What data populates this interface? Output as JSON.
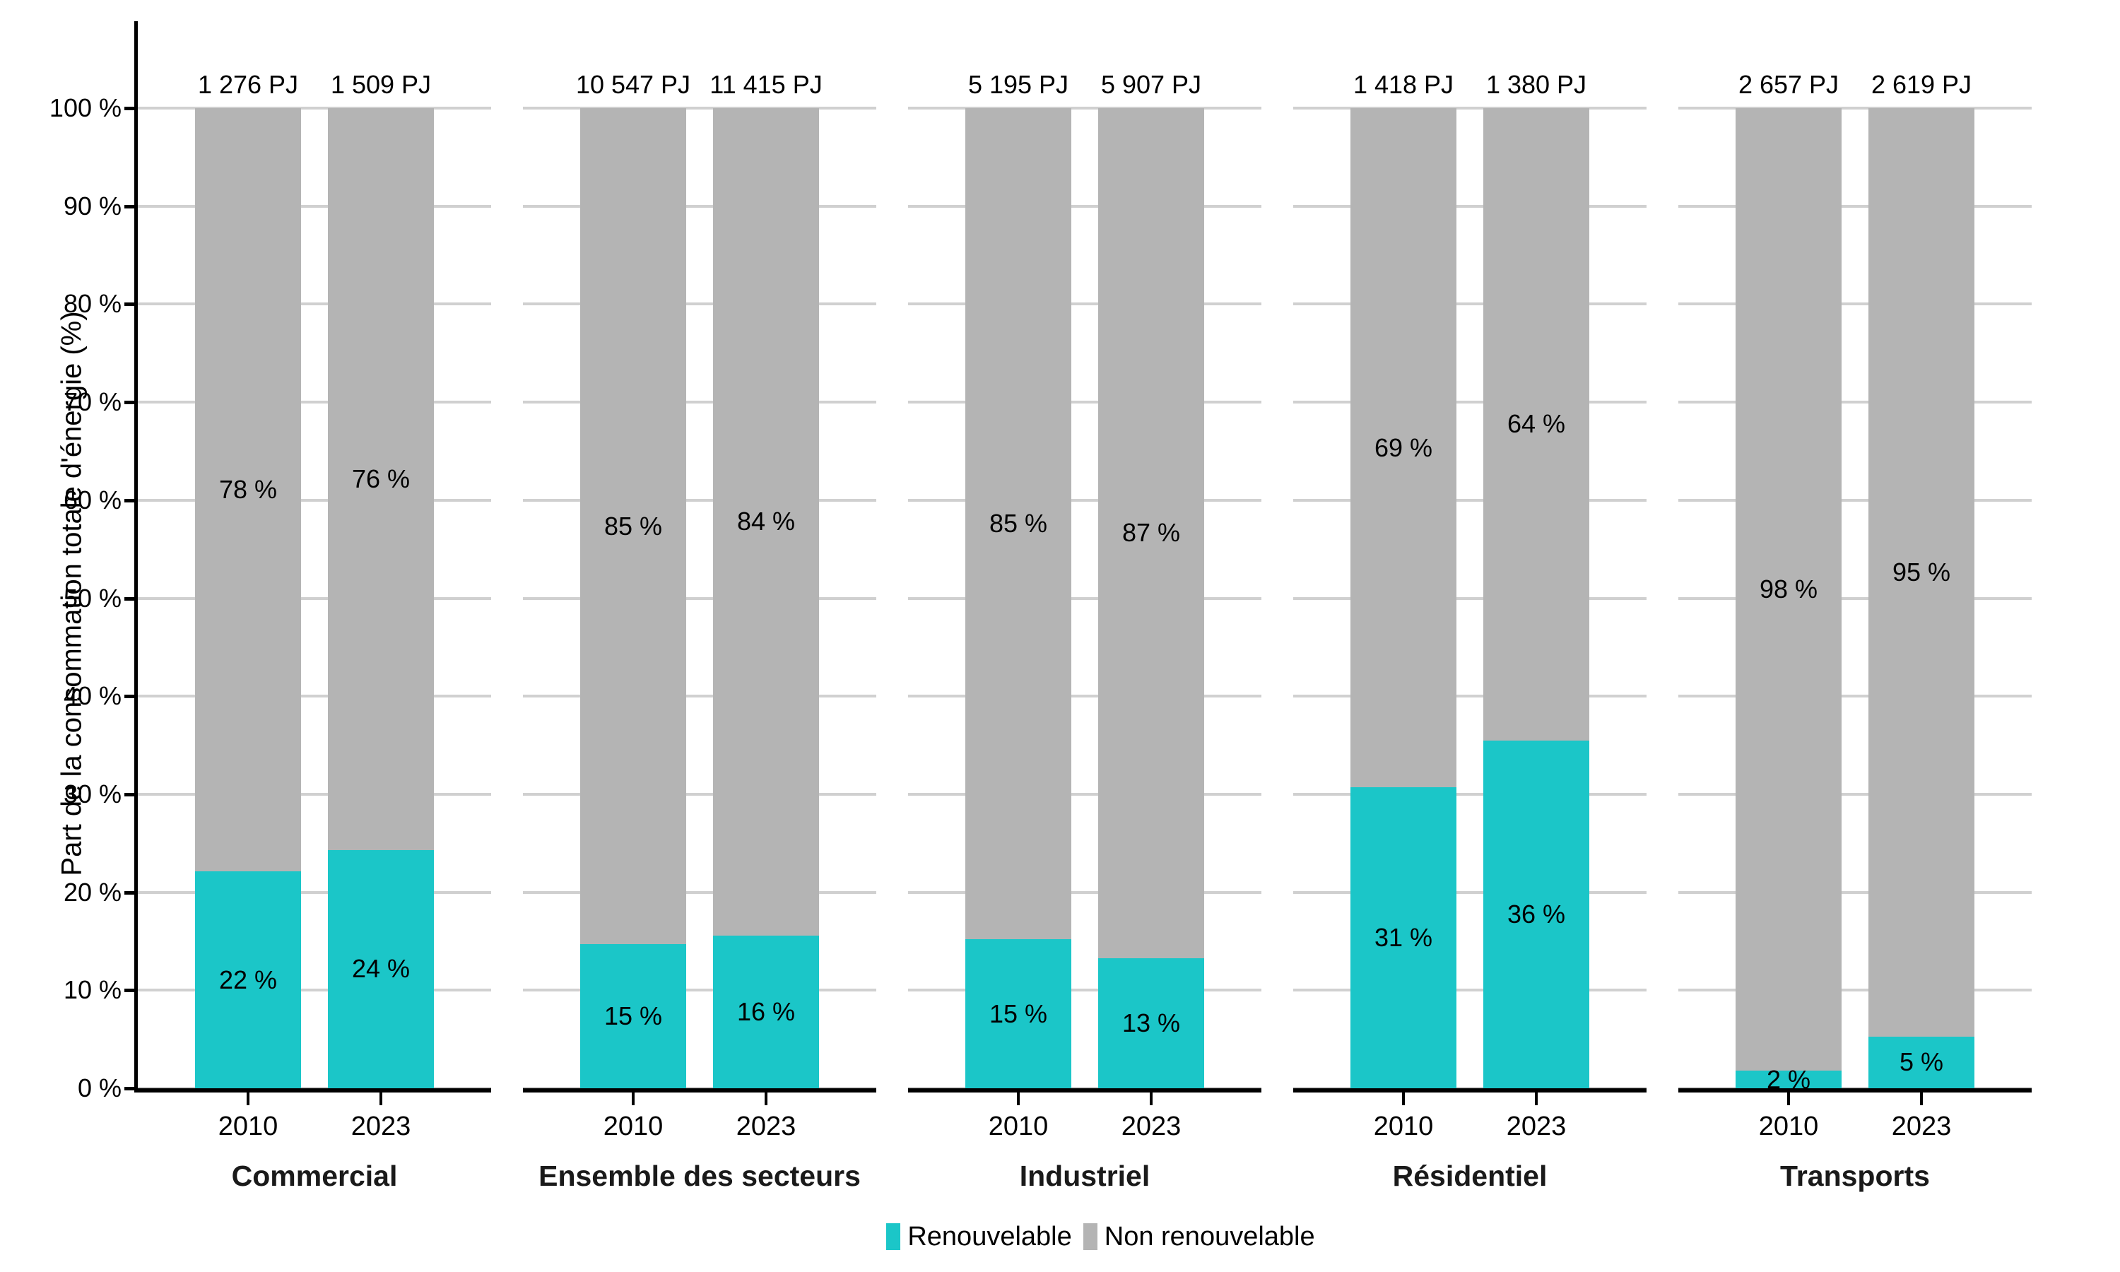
{
  "y_axis": {
    "title": "Part de la consommation totale d'énergie (%)",
    "tick_labels": [
      "0 %",
      "10 %",
      "20 %",
      "30 %",
      "40 %",
      "50 %",
      "60 %",
      "70 %",
      "80 %",
      "90 %",
      "100 %"
    ]
  },
  "colors": {
    "renewable": "#1BC6C8",
    "nonrenewable": "#B4B4B4",
    "gridline": "#D0D0D0",
    "axis": "#000000"
  },
  "legend": {
    "items": [
      {
        "label": "Renouvelable",
        "color": "#1BC6C8"
      },
      {
        "label": "Non renouvelable",
        "color": "#B4B4B4"
      }
    ]
  },
  "panels": [
    {
      "sector": "Commercial",
      "bars": [
        {
          "year": "2010",
          "total_label": "1 276 PJ",
          "renewable_pct": 22.1,
          "renewable_value_label": "22 %",
          "nonrenewable_value_label": "78 %"
        },
        {
          "year": "2023",
          "total_label": "1 509 PJ",
          "renewable_pct": 24.3,
          "renewable_value_label": "24 %",
          "nonrenewable_value_label": "76 %"
        }
      ]
    },
    {
      "sector": "Ensemble des secteurs",
      "bars": [
        {
          "year": "2010",
          "total_label": "10 547 PJ",
          "renewable_pct": 14.7,
          "renewable_value_label": "15 %",
          "nonrenewable_value_label": "85 %"
        },
        {
          "year": "2023",
          "total_label": "11 415 PJ",
          "renewable_pct": 15.6,
          "renewable_value_label": "16 %",
          "nonrenewable_value_label": "84 %"
        }
      ]
    },
    {
      "sector": "Industriel",
      "bars": [
        {
          "year": "2010",
          "total_label": "5 195 PJ",
          "renewable_pct": 15.2,
          "renewable_value_label": "15 %",
          "nonrenewable_value_label": "85 %"
        },
        {
          "year": "2023",
          "total_label": "5 907 PJ",
          "renewable_pct": 13.3,
          "renewable_value_label": "13 %",
          "nonrenewable_value_label": "87 %"
        }
      ]
    },
    {
      "sector": "Résidentiel",
      "bars": [
        {
          "year": "2010",
          "total_label": "1 418 PJ",
          "renewable_pct": 30.7,
          "renewable_value_label": "31 %",
          "nonrenewable_value_label": "69 %"
        },
        {
          "year": "2023",
          "total_label": "1 380 PJ",
          "renewable_pct": 35.5,
          "renewable_value_label": "36 %",
          "nonrenewable_value_label": "64 %"
        }
      ]
    },
    {
      "sector": "Transports",
      "bars": [
        {
          "year": "2010",
          "total_label": "2 657 PJ",
          "renewable_pct": 1.8,
          "renewable_value_label": "2 %",
          "nonrenewable_value_label": "98 %"
        },
        {
          "year": "2023",
          "total_label": "2 619 PJ",
          "renewable_pct": 5.3,
          "renewable_value_label": "5 %",
          "nonrenewable_value_label": "95 %"
        }
      ]
    }
  ],
  "chart_data": {
    "type": "bar",
    "stacked": true,
    "orientation": "vertical",
    "facets": [
      "Commercial",
      "Ensemble des secteurs",
      "Industriel",
      "Résidentiel",
      "Transports"
    ],
    "x": [
      "2010",
      "2023"
    ],
    "series": [
      {
        "name": "Renouvelable",
        "color": "#1BC6C8",
        "values": {
          "Commercial": [
            22,
            24
          ],
          "Ensemble des secteurs": [
            15,
            16
          ],
          "Industriel": [
            15,
            13
          ],
          "Résidentiel": [
            31,
            36
          ],
          "Transports": [
            2,
            5
          ]
        }
      },
      {
        "name": "Non renouvelable",
        "color": "#B4B4B4",
        "values": {
          "Commercial": [
            78,
            76
          ],
          "Ensemble des secteurs": [
            85,
            84
          ],
          "Industriel": [
            85,
            87
          ],
          "Résidentiel": [
            69,
            64
          ],
          "Transports": [
            98,
            95
          ]
        }
      }
    ],
    "totals_pj": {
      "Commercial": [
        "1 276 PJ",
        "1 509 PJ"
      ],
      "Ensemble des secteurs": [
        "10 547 PJ",
        "11 415 PJ"
      ],
      "Industriel": [
        "5 195 PJ",
        "5 907 PJ"
      ],
      "Résidentiel": [
        "1 418 PJ",
        "1 380 PJ"
      ],
      "Transports": [
        "2 657 PJ",
        "2 619 PJ"
      ]
    },
    "title": "",
    "xlabel": "",
    "ylabel": "Part de la consommation totale d'énergie (%)",
    "ylim": [
      0,
      100
    ],
    "ytick_step": 10,
    "grid": true,
    "legend_position": "bottom"
  }
}
